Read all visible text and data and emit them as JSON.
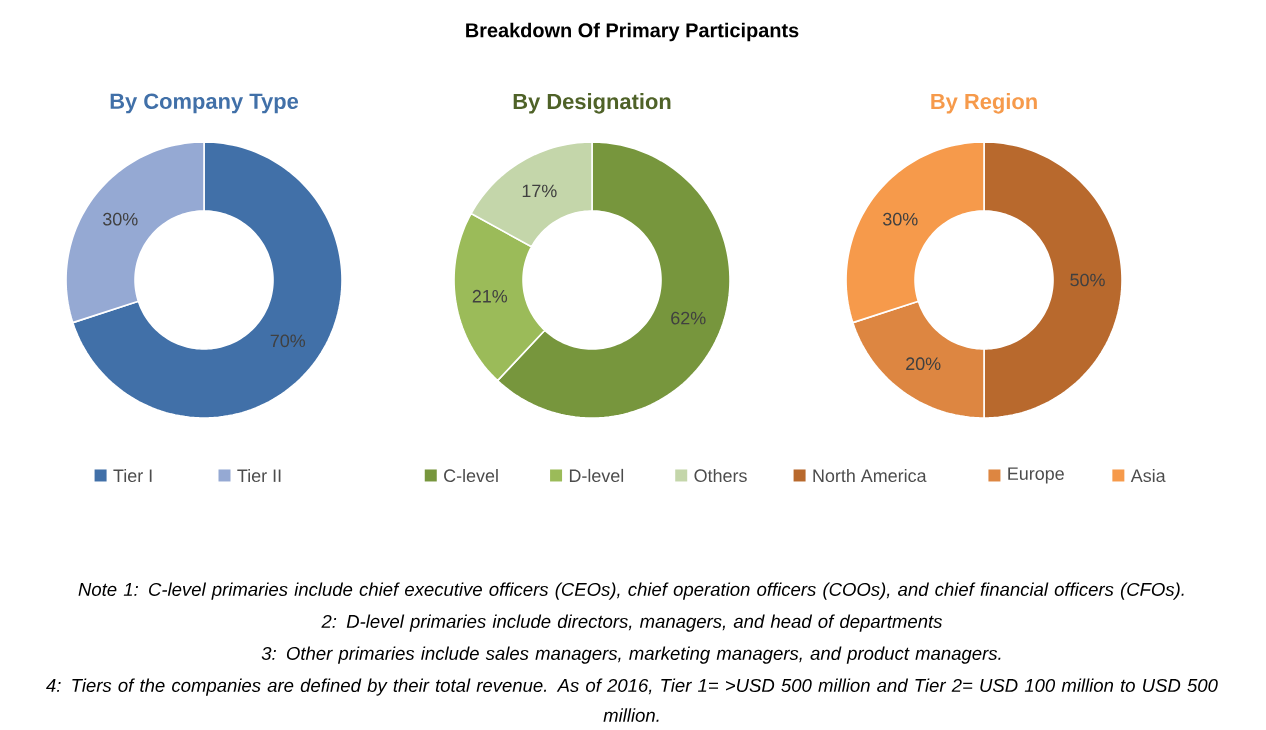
{
  "chart_data": [
    {
      "type": "donut",
      "title": "By Company Type",
      "categories": [
        "Tier I",
        "Tier II"
      ],
      "values": [
        70,
        30
      ],
      "value_labels": [
        "70%",
        "30%"
      ],
      "colors": [
        "#4170a8",
        "#95a9d3"
      ],
      "legend": "bottom"
    },
    {
      "type": "donut",
      "title": "By Designation",
      "categories": [
        "C-level",
        "D-level",
        "Others"
      ],
      "values": [
        62,
        21,
        17
      ],
      "value_labels": [
        "62%",
        "21%",
        "17%"
      ],
      "colors": [
        "#77963d",
        "#9bbb59",
        "#c4d6aa"
      ],
      "legend": "bottom"
    },
    {
      "type": "donut",
      "title": "By Region",
      "categories": [
        "North America",
        "Europe",
        "Asia"
      ],
      "values": [
        50,
        20,
        30
      ],
      "value_labels": [
        "50%",
        "20%",
        "30%"
      ],
      "colors": [
        "#b8692d",
        "#dd8641",
        "#f69a4b"
      ],
      "legend": "bottom"
    },
    {
      "type": "other",
      "title": "Breakdown Of Primary Participants",
      "annotations": [
        "Note 1: C-level primaries include chief executive officers (CEOs), chief operation officers (COOs), and chief financial officers (CFOs).",
        "2: D-level primaries include directors, managers, and head of departments",
        "3: Other primaries include sales managers, marketing managers, and product managers.",
        "4:  Tiers of the companies are defined by their total revenue. As of 2016, Tier 1= >USD 500 million and Tier 2= USD 100 million to USD 500 million."
      ]
    }
  ]
}
